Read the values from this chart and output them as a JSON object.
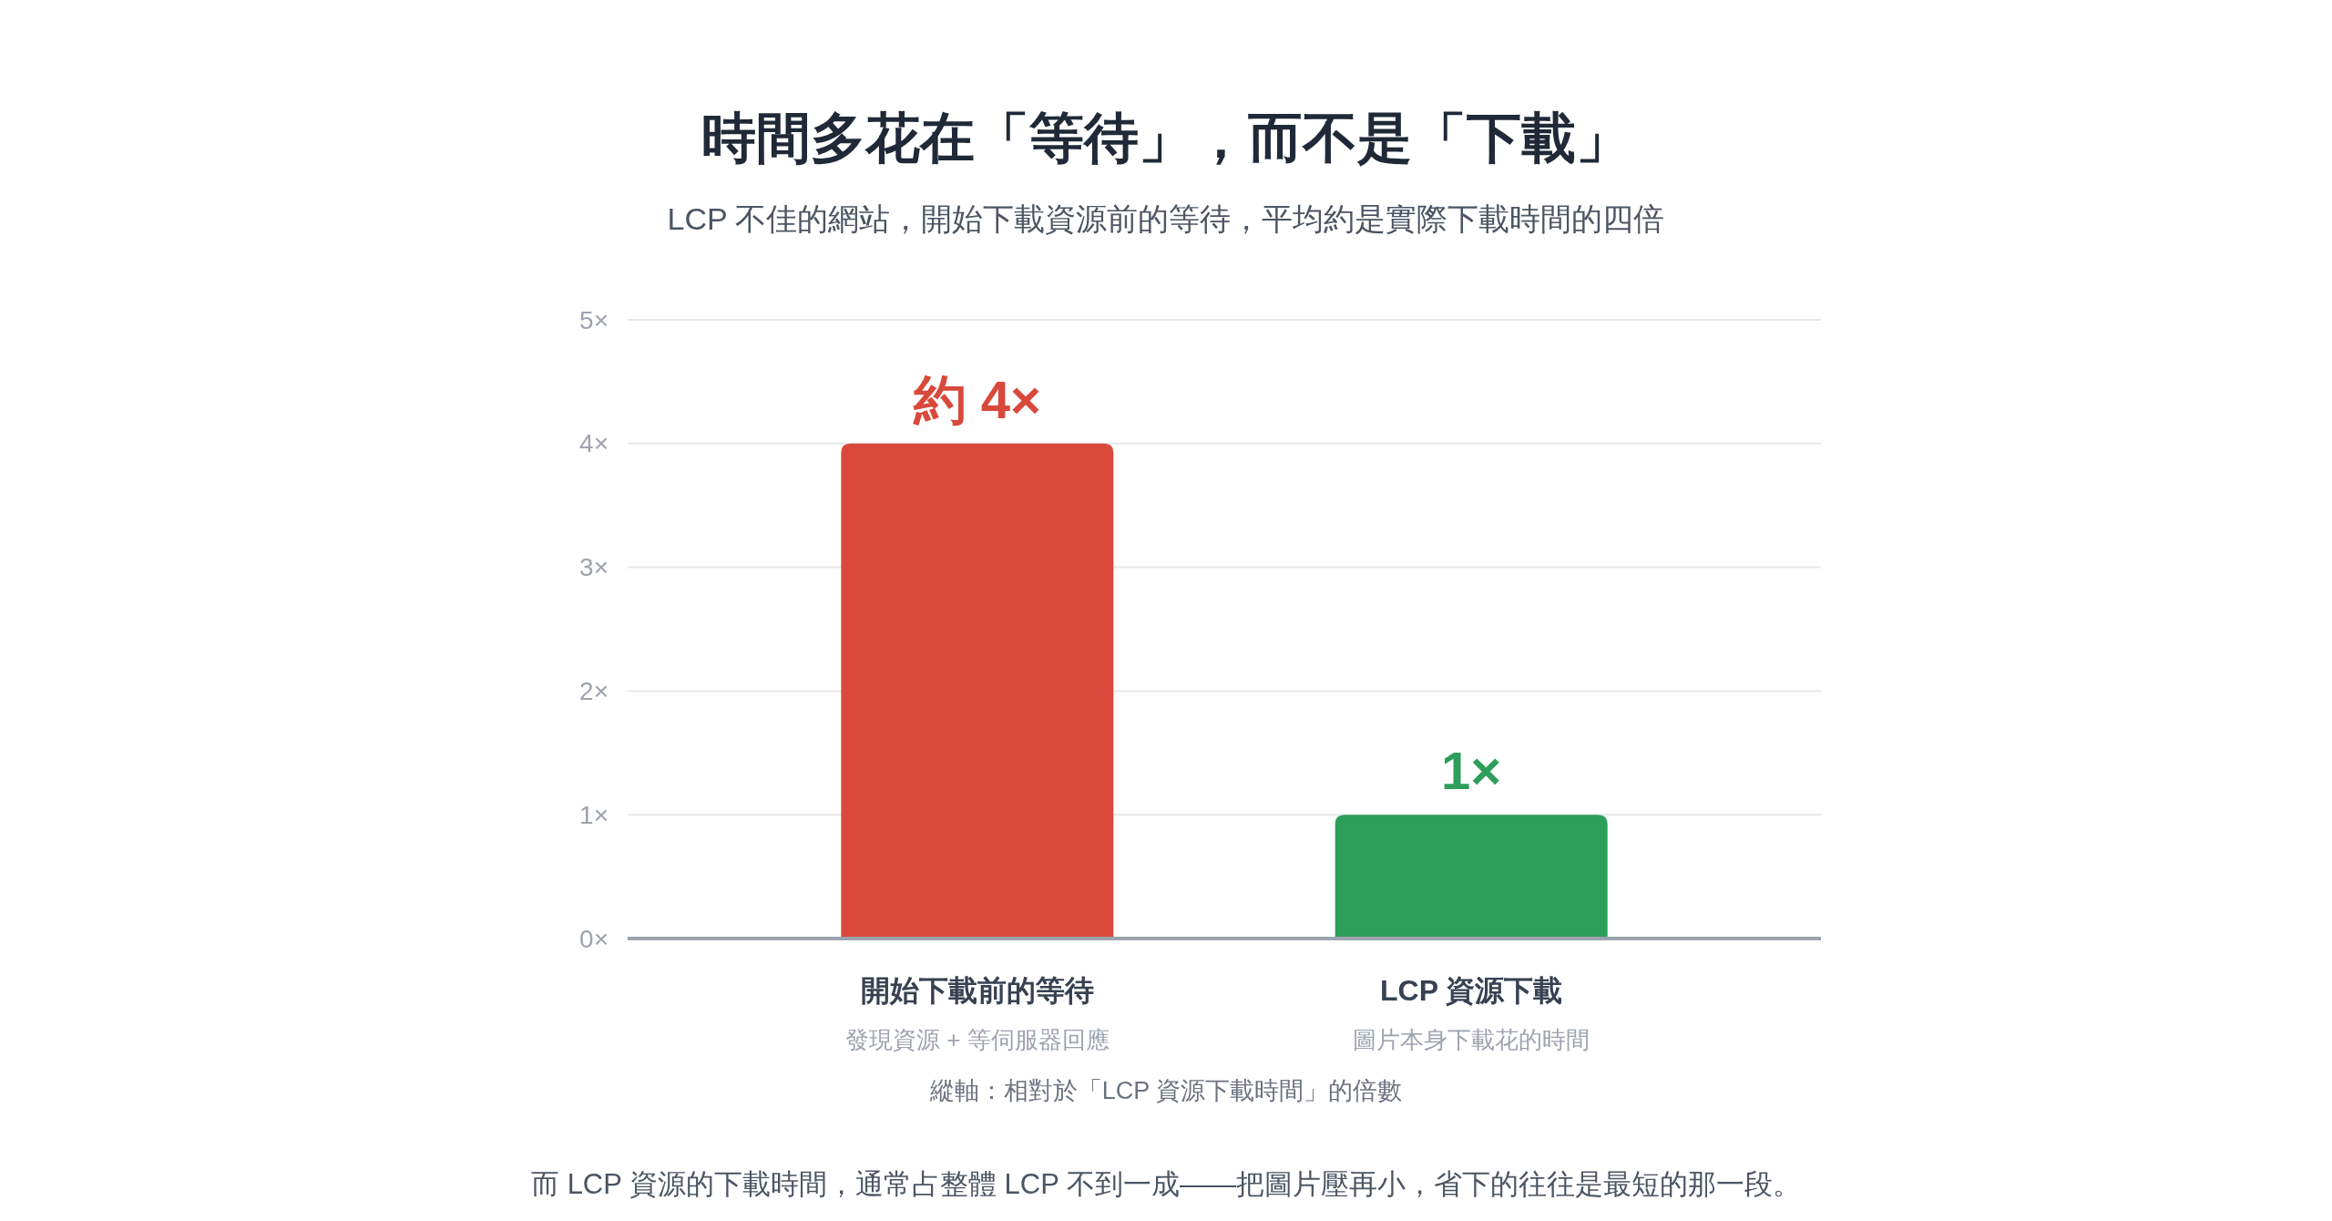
{
  "chart_data": {
    "type": "bar",
    "title": "時間多花在「等待」，而不是「下載」",
    "subtitle": "LCP 不佳的網站，開始下載資源前的等待，平均約是實際下載時間的四倍",
    "categories": [
      "開始下載前的等待",
      "LCP 資源下載"
    ],
    "values": [
      4,
      1
    ],
    "colors": [
      "#d9493b",
      "#2e9e5b"
    ],
    "value_labels": [
      "約 4×",
      "1×"
    ],
    "ylim": [
      0,
      5
    ],
    "yticks": [
      {
        "value": 0,
        "label": "0×"
      },
      {
        "value": 1,
        "label": "1×"
      },
      {
        "value": 2,
        "label": "2×"
      },
      {
        "value": 3,
        "label": "3×"
      },
      {
        "value": 4,
        "label": "4×"
      },
      {
        "value": 5,
        "label": "5×"
      }
    ],
    "grid": "y",
    "annotations": [
      "發現資源 + 等伺服器回應",
      "圖片本身下載花的時間",
      "縱軸：相對於「LCP 資源下載時間」的倍數",
      "而 LCP 資源的下載時間，通常占整體 LCP 不到一成——把圖片壓再小，省下的往往是最短的那一段。"
    ]
  }
}
